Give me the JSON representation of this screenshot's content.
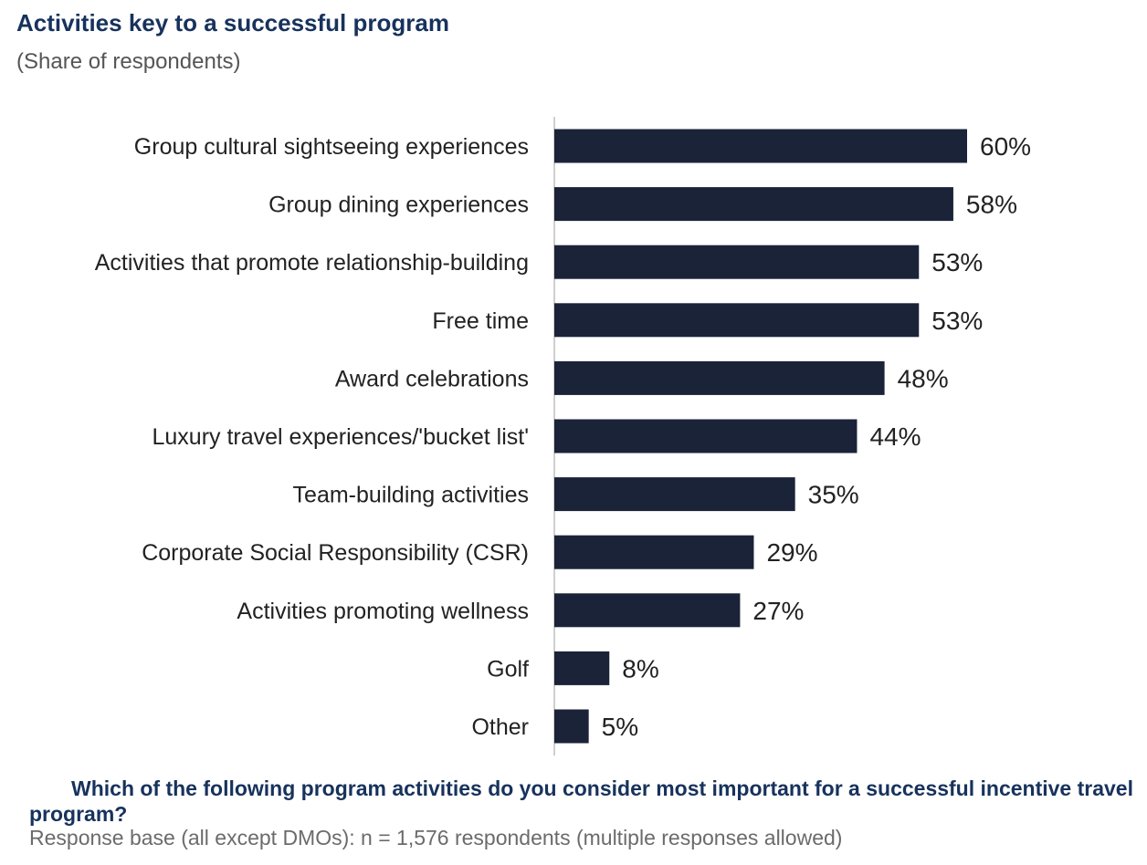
{
  "header": {
    "title": "Activities key to a successful program",
    "subtitle": "(Share of respondents)"
  },
  "footer": {
    "question": "Which of the following program activities do you consider most important for a successful incentive travel program?",
    "base": "Response base (all except DMOs): n = 1,576 respondents (multiple responses allowed)"
  },
  "colors": {
    "bar": "#1b2338",
    "title": "#17325c",
    "label": "#222222",
    "axis": "#bfbfbf"
  },
  "chart_data": {
    "type": "bar",
    "orientation": "horizontal",
    "title": "Activities key to a successful program",
    "subtitle": "(Share of respondents)",
    "categories": [
      "Group cultural sightseeing experiences",
      "Group dining experiences",
      "Activities that promote relationship-building",
      "Free time",
      "Award celebrations",
      "Luxury travel experiences/'bucket list'",
      "Team-building activities",
      "Corporate Social Responsibility (CSR)",
      "Activities promoting wellness",
      "Golf",
      "Other"
    ],
    "values": [
      60,
      58,
      53,
      53,
      48,
      44,
      35,
      29,
      27,
      8,
      5
    ],
    "data_labels": [
      "60%",
      "58%",
      "53%",
      "53%",
      "48%",
      "44%",
      "35%",
      "29%",
      "27%",
      "8%",
      "5%"
    ],
    "unit": "%",
    "xlim": [
      0,
      60
    ],
    "grid": false,
    "legend": "none"
  }
}
